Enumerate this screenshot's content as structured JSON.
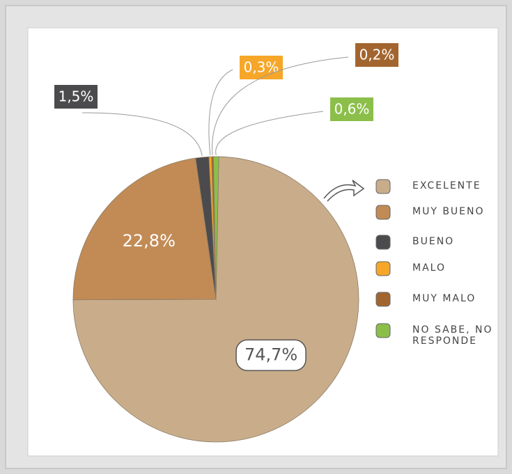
{
  "chart_data": {
    "type": "pie",
    "categories": [
      "EXCELENTE",
      "MUY BUENO",
      "BUENO",
      "MALO",
      "MUY MALO",
      "NO SABE, NO RESPONDE"
    ],
    "values": [
      74.7,
      22.8,
      1.5,
      0.3,
      0.2,
      0.6
    ],
    "value_labels": [
      "74,7%",
      "22,8%",
      "1,5%",
      "0,3%",
      "0,2%",
      "0,6%"
    ],
    "colors": [
      "#c9ad8a",
      "#c28b55",
      "#4b4b4d",
      "#f6a629",
      "#a3652f",
      "#8cbf4a"
    ]
  }
}
